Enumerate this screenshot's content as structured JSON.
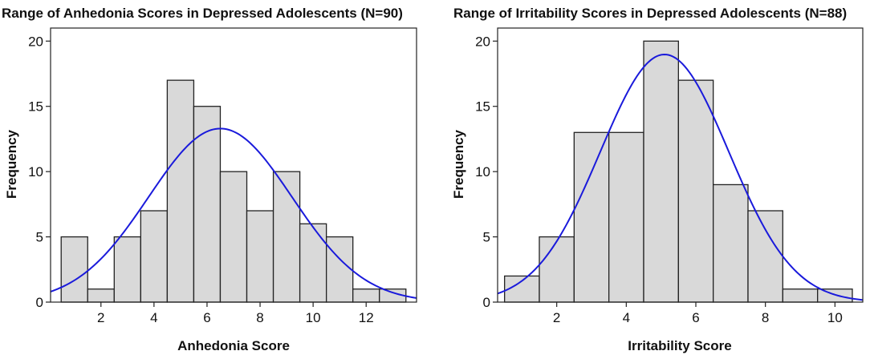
{
  "chart_data": [
    {
      "type": "bar",
      "subtype": "histogram",
      "title": "Range of Anhedonia Scores in Depressed Adolescents (N=90)",
      "xlabel": "Anhedonia Score",
      "ylabel": "Frequency",
      "xlim": [
        0.1,
        13.9
      ],
      "ylim": [
        0,
        21
      ],
      "xticks": [
        2,
        4,
        6,
        8,
        10,
        12
      ],
      "yticks": [
        0,
        5,
        10,
        15,
        20
      ],
      "bin_width": 1,
      "bin_centers": [
        1,
        2,
        3,
        4,
        5,
        6,
        7,
        8,
        9,
        10,
        11,
        12,
        13
      ],
      "values": [
        5,
        1,
        5,
        7,
        17,
        15,
        10,
        7,
        10,
        6,
        5,
        1,
        1
      ],
      "bar_color": "#d9d9d9",
      "curve": {
        "type": "normal",
        "mean": 6.5,
        "sd": 2.7,
        "n": 90,
        "color": "#1a1adb"
      }
    },
    {
      "type": "bar",
      "subtype": "histogram",
      "title": "Range of Irritability Scores in Depressed Adolescents (N=88)",
      "xlabel": "Irritability Score",
      "ylabel": "Frequency",
      "xlim": [
        0.3,
        10.8
      ],
      "ylim": [
        0,
        21
      ],
      "xticks": [
        2,
        4,
        6,
        8,
        10
      ],
      "yticks": [
        0,
        5,
        10,
        15,
        20
      ],
      "bin_width": 1,
      "bin_centers": [
        1,
        2,
        3,
        4,
        5,
        6,
        7,
        8,
        9,
        10
      ],
      "values": [
        2,
        5,
        13,
        13,
        20,
        17,
        9,
        7,
        1,
        1
      ],
      "bar_color": "#d9d9d9",
      "curve": {
        "type": "normal",
        "mean": 5.1,
        "sd": 1.85,
        "n": 88,
        "color": "#1a1adb"
      }
    }
  ]
}
